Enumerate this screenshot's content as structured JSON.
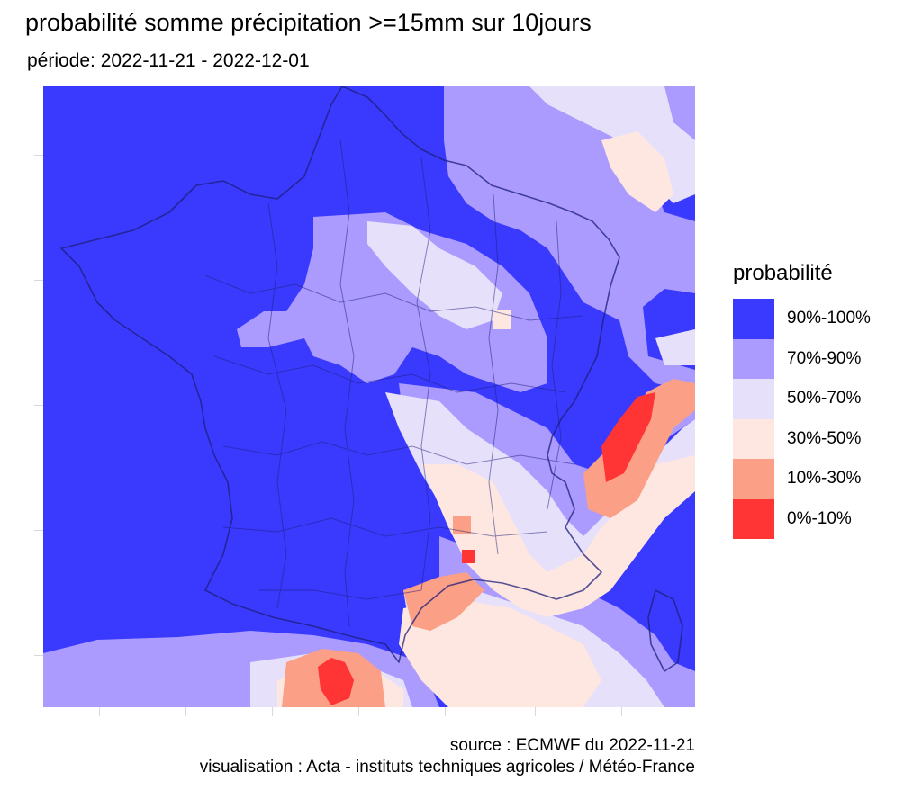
{
  "title": "probabilité somme précipitation >=15mm sur 10jours",
  "subtitle": "période: 2022-11-21 - 2022-12-01",
  "legend": {
    "title": "probabilité",
    "items": [
      {
        "label": "90%-100%",
        "color": "#3a3aff"
      },
      {
        "label": "70%-90%",
        "color": "#ab9bff"
      },
      {
        "label": "50%-70%",
        "color": "#e6e0fb"
      },
      {
        "label": "30%-50%",
        "color": "#fde7e0"
      },
      {
        "label": "10%-30%",
        "color": "#fb9f86"
      },
      {
        "label": "0%-10%",
        "color": "#ff3535"
      }
    ]
  },
  "footer": {
    "source": "source : ECMWF du 2022-11-21",
    "visualisation": "visualisation : Acta - instituts techniques agricoles / Météo-France"
  },
  "map": {
    "region": "France",
    "boundary_color": "#1e1e7a",
    "background_color": "#3a3aff"
  }
}
